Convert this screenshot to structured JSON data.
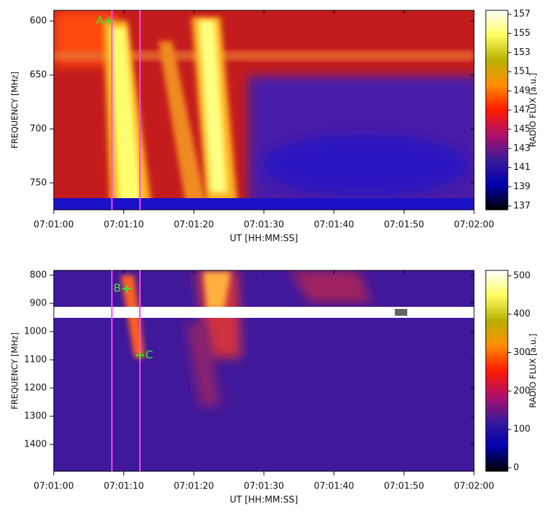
{
  "chart_data": [
    {
      "type": "heatmap",
      "xlabel": "UT [HH:MM:SS]",
      "ylabel": "FREQUENCY [MHz]",
      "xlim": [
        "07:01:00",
        "07:02:00"
      ],
      "xticks": [
        "07:01:00",
        "07:01:10",
        "07:01:20",
        "07:01:30",
        "07:01:40",
        "07:01:50",
        "07:02:00"
      ],
      "ylim": [
        590,
        775
      ],
      "y_inverted": true,
      "yticks": [
        600,
        650,
        700,
        750
      ],
      "colorbar": {
        "label": "RADIO FLUX [a.u.]",
        "lim": [
          136.6,
          157.4
        ],
        "ticks": [
          137,
          139,
          141,
          143,
          145,
          147,
          149,
          151,
          153,
          155,
          157
        ],
        "colormap": [
          "#000000",
          "#0000b0",
          "#3a1a9a",
          "#b0106a",
          "#ff1a00",
          "#ff8c00",
          "#b8b000",
          "#ffff60",
          "#ffffff"
        ]
      },
      "lines": [
        {
          "x": "07:01:08.3",
          "color": "#ff44ff"
        },
        {
          "x": "07:01:12.3",
          "color": "#ff44ff"
        }
      ],
      "annotations": [
        {
          "text": "A",
          "x": "07:01:07.9",
          "y": 600,
          "color": "#33ee33",
          "side": "left"
        }
      ]
    },
    {
      "type": "heatmap",
      "xlabel": "UT [HH:MM:SS]",
      "ylabel": "FREQUENCY [MHz]",
      "xlim": [
        "07:01:00",
        "07:02:00"
      ],
      "xticks": [
        "07:01:00",
        "07:01:10",
        "07:01:20",
        "07:01:30",
        "07:01:40",
        "07:01:50",
        "07:02:00"
      ],
      "ylim": [
        783,
        1495
      ],
      "y_inverted": true,
      "yticks": [
        800,
        900,
        1000,
        1100,
        1200,
        1300,
        1400
      ],
      "colorbar": {
        "label": "RADIO FLUX [a.u.]",
        "lim": [
          -9,
          514
        ],
        "ticks": [
          0,
          100,
          200,
          300,
          400,
          500
        ],
        "colormap": [
          "#000000",
          "#0000b0",
          "#3a1a9a",
          "#b0106a",
          "#ff1a00",
          "#ff8c00",
          "#b8b000",
          "#ffff60",
          "#ffffff"
        ]
      },
      "lines": [
        {
          "x": "07:01:08.3",
          "color": "#ff44ff"
        },
        {
          "x": "07:01:12.3",
          "color": "#ff44ff"
        }
      ],
      "annotations": [
        {
          "text": "B",
          "x": "07:01:10.4",
          "y": 848,
          "color": "#33ee33",
          "side": "left"
        },
        {
          "text": "C",
          "x": "07:01:12.3",
          "y": 1084,
          "color": "#33ee33",
          "side": "right"
        }
      ]
    }
  ]
}
